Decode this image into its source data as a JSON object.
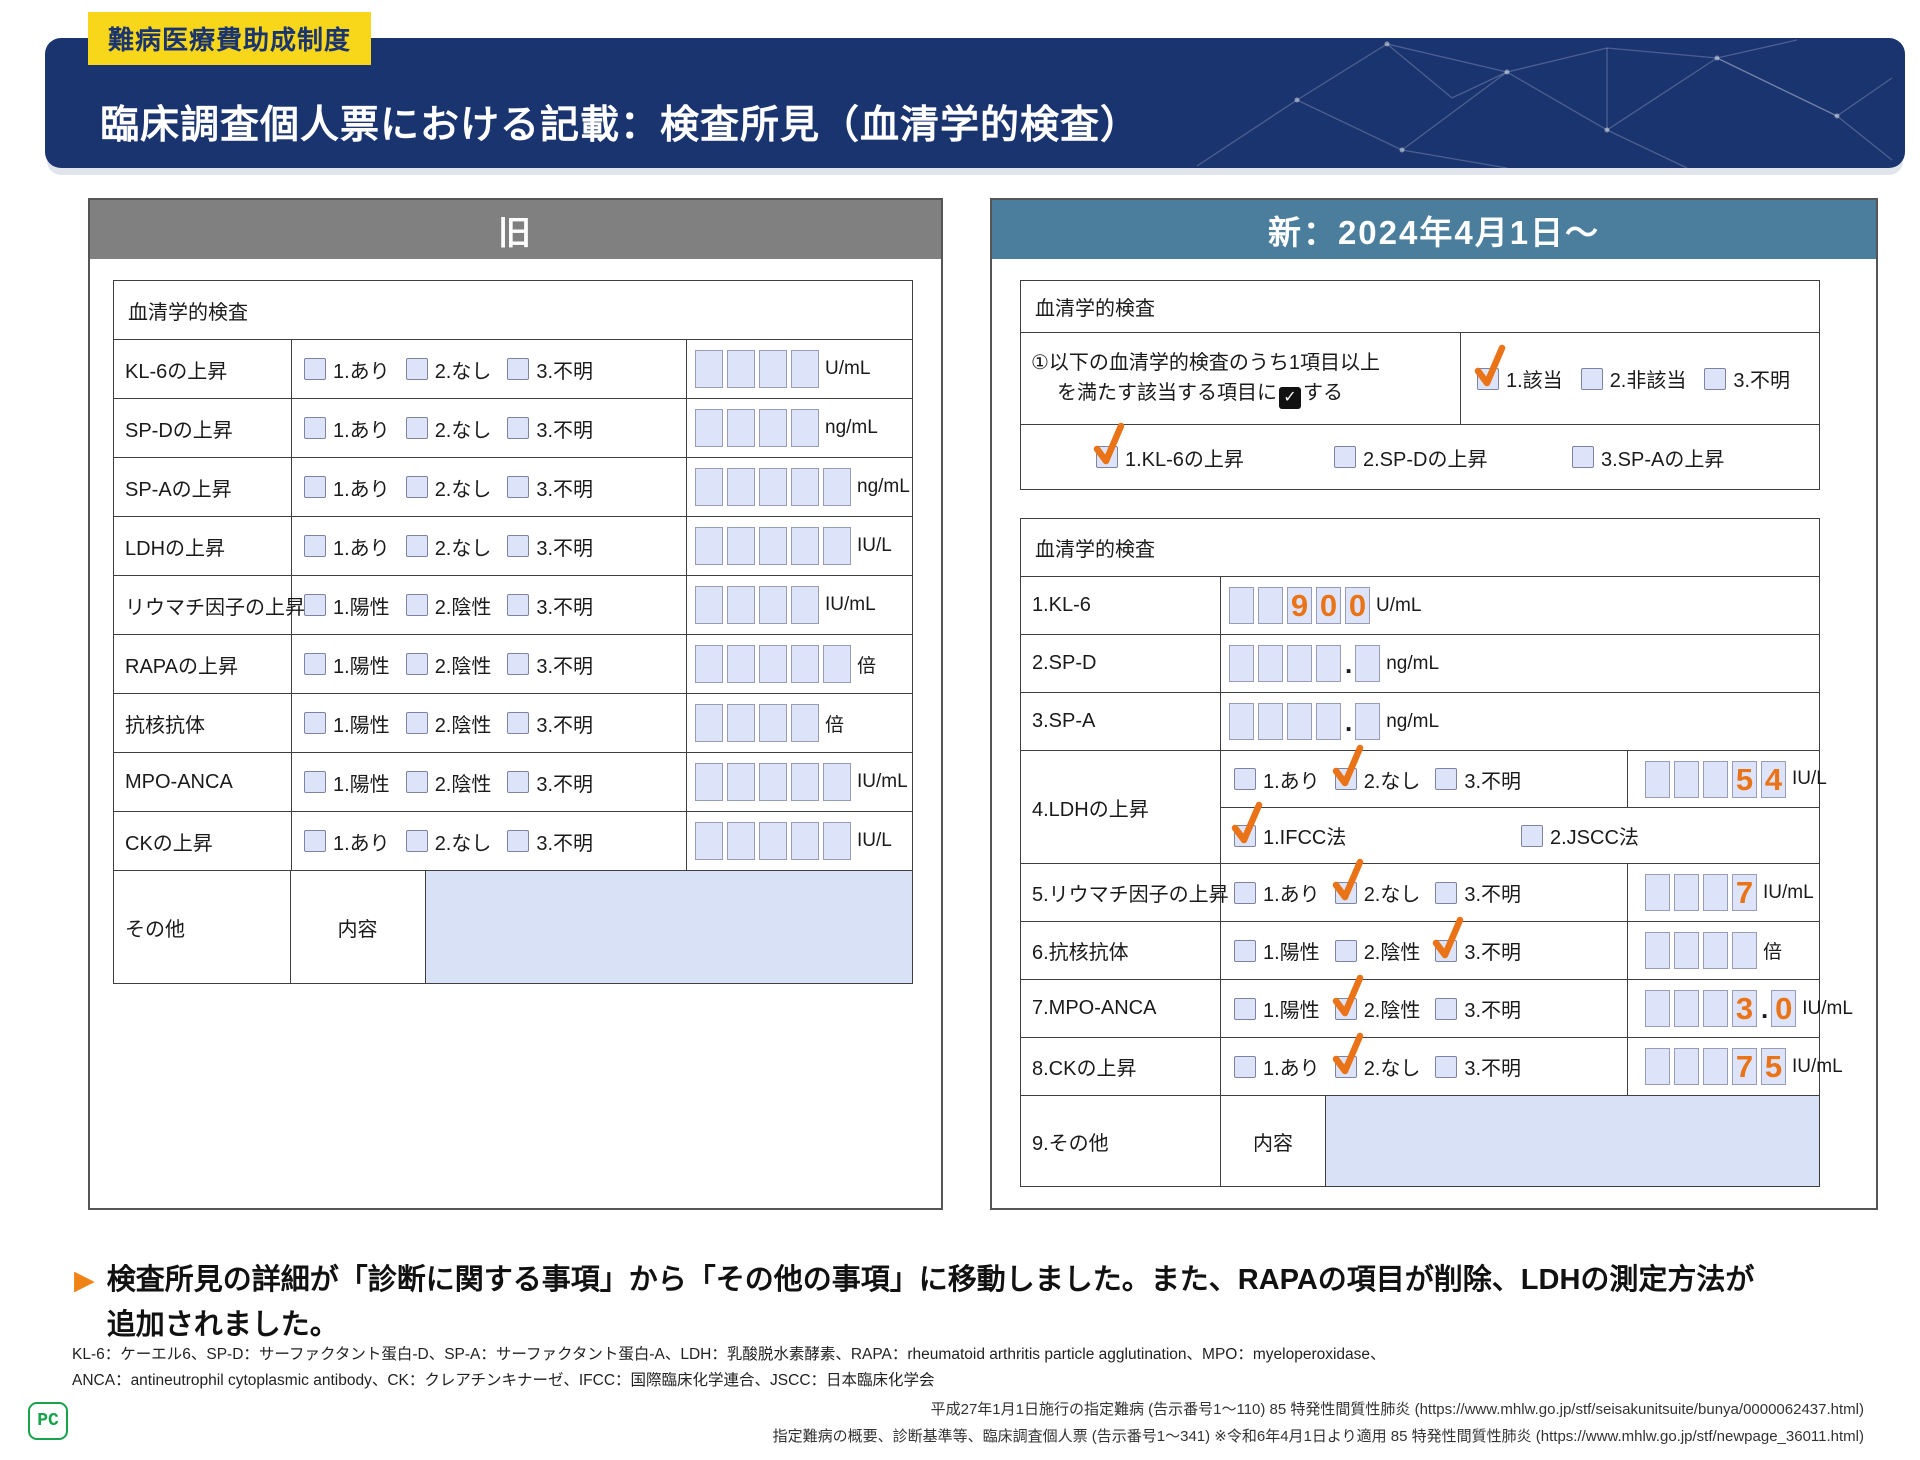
{
  "page": {
    "badge": "難病医療費助成制度",
    "title": "臨床調査個人票における記載：検査所見（血清学的検査）",
    "colors": {
      "navy": "#1a3470",
      "badge_yellow": "#f8d61a",
      "old_header_gray": "#808080",
      "new_header_teal": "#4a7e9c",
      "check_orange": "#ea7317",
      "field_fill": "#dde3f8",
      "content_area_fill": "#d9e1f7",
      "logo_green": "#18a24b"
    }
  },
  "old_panel": {
    "header": "旧",
    "table_title": "血清学的検査",
    "rows": [
      {
        "label": "KL-6の上昇",
        "options": [
          {
            "label": "1.あり"
          },
          {
            "label": "2.なし"
          },
          {
            "label": "3.不明"
          }
        ],
        "value": {
          "groups": [
            [
              "",
              "",
              "",
              ""
            ]
          ],
          "unit": "U/mL"
        }
      },
      {
        "label": "SP-Dの上昇",
        "options": [
          {
            "label": "1.あり"
          },
          {
            "label": "2.なし"
          },
          {
            "label": "3.不明"
          }
        ],
        "value": {
          "groups": [
            [
              "",
              "",
              "",
              ""
            ]
          ],
          "unit": "ng/mL"
        }
      },
      {
        "label": "SP-Aの上昇",
        "options": [
          {
            "label": "1.あり"
          },
          {
            "label": "2.なし"
          },
          {
            "label": "3.不明"
          }
        ],
        "value": {
          "groups": [
            [
              "",
              "",
              "",
              "",
              ""
            ]
          ],
          "unit": "ng/mL"
        }
      },
      {
        "label": "LDHの上昇",
        "options": [
          {
            "label": "1.あり"
          },
          {
            "label": "2.なし"
          },
          {
            "label": "3.不明"
          }
        ],
        "value": {
          "groups": [
            [
              "",
              "",
              "",
              "",
              ""
            ]
          ],
          "unit": "IU/L"
        }
      },
      {
        "label": "リウマチ因子の上昇",
        "options": [
          {
            "label": "1.陽性"
          },
          {
            "label": "2.陰性"
          },
          {
            "label": "3.不明"
          }
        ],
        "value": {
          "groups": [
            [
              "",
              "",
              "",
              ""
            ]
          ],
          "unit": "IU/mL"
        }
      },
      {
        "label": "RAPAの上昇",
        "options": [
          {
            "label": "1.陽性"
          },
          {
            "label": "2.陰性"
          },
          {
            "label": "3.不明"
          }
        ],
        "value": {
          "groups": [
            [
              "",
              "",
              "",
              "",
              ""
            ]
          ],
          "unit": "倍"
        }
      },
      {
        "label": "抗核抗体",
        "options": [
          {
            "label": "1.陽性"
          },
          {
            "label": "2.陰性"
          },
          {
            "label": "3.不明"
          }
        ],
        "value": {
          "groups": [
            [
              "",
              "",
              "",
              ""
            ]
          ],
          "unit": "倍"
        }
      },
      {
        "label": "MPO-ANCA",
        "options": [
          {
            "label": "1.陽性"
          },
          {
            "label": "2.陰性"
          },
          {
            "label": "3.不明"
          }
        ],
        "value": {
          "groups": [
            [
              "",
              "",
              "",
              "",
              ""
            ]
          ],
          "unit": "IU/mL"
        }
      },
      {
        "label": "CKの上昇",
        "options": [
          {
            "label": "1.あり"
          },
          {
            "label": "2.なし"
          },
          {
            "label": "3.不明"
          }
        ],
        "value": {
          "groups": [
            [
              "",
              "",
              "",
              "",
              ""
            ]
          ],
          "unit": "IU/L"
        }
      }
    ],
    "other_row": {
      "label": "その他",
      "content_label": "内容"
    }
  },
  "new_panel": {
    "header": "新：2024年4月1日～",
    "criteria_table": {
      "title": "血清学的検査",
      "instruction_line1": "①以下の血清学的検査のうち1項目以上",
      "instruction_line2_pre": "を満たす該当する項目に",
      "instruction_check_glyph": "✓",
      "instruction_line2_post": "する",
      "status_options": [
        {
          "label": "1.該当",
          "checked": true
        },
        {
          "label": "2.非該当",
          "checked": false
        },
        {
          "label": "3.不明",
          "checked": false
        }
      ],
      "item_options": [
        {
          "label": "1.KL-6の上昇",
          "checked": true
        },
        {
          "label": "2.SP-Dの上昇",
          "checked": false
        },
        {
          "label": "3.SP-Aの上昇",
          "checked": false
        }
      ]
    },
    "result_table": {
      "title": "血清学的検査",
      "rows": [
        {
          "type": "value_only",
          "label": "1.KL-6",
          "value": {
            "groups": [
              [
                "",
                "",
                "9",
                "0",
                "0"
              ]
            ],
            "unit": "U/mL"
          }
        },
        {
          "type": "value_only",
          "label": "2.SP-D",
          "value": {
            "groups": [
              [
                "",
                "",
                "",
                ""
              ],
              [
                ""
              ]
            ],
            "unit": "ng/mL"
          }
        },
        {
          "type": "value_only",
          "label": "3.SP-A",
          "value": {
            "groups": [
              [
                "",
                "",
                "",
                ""
              ],
              [
                ""
              ]
            ],
            "unit": "ng/mL"
          }
        },
        {
          "type": "options_value_methods",
          "label": "4.LDHの上昇",
          "options": [
            {
              "label": "1.あり",
              "checked": false
            },
            {
              "label": "2.なし",
              "checked": true
            },
            {
              "label": "3.不明",
              "checked": false
            }
          ],
          "value": {
            "groups": [
              [
                "",
                "",
                "",
                "5",
                "4"
              ]
            ],
            "unit": "IU/L"
          },
          "methods": [
            {
              "label": "1.IFCC法",
              "checked": true
            },
            {
              "label": "2.JSCC法",
              "checked": false
            }
          ]
        },
        {
          "type": "options_value",
          "label": "5.リウマチ因子の上昇",
          "options": [
            {
              "label": "1.あり",
              "checked": false
            },
            {
              "label": "2.なし",
              "checked": true
            },
            {
              "label": "3.不明",
              "checked": false
            }
          ],
          "value": {
            "groups": [
              [
                "",
                "",
                "",
                "7"
              ]
            ],
            "unit": "IU/mL"
          }
        },
        {
          "type": "options_value",
          "label": "6.抗核抗体",
          "options": [
            {
              "label": "1.陽性",
              "checked": false
            },
            {
              "label": "2.陰性",
              "checked": false
            },
            {
              "label": "3.不明",
              "checked": true
            }
          ],
          "value": {
            "groups": [
              [
                "",
                "",
                "",
                ""
              ]
            ],
            "unit": "倍"
          }
        },
        {
          "type": "options_value",
          "label": "7.MPO-ANCA",
          "options": [
            {
              "label": "1.陽性",
              "checked": false
            },
            {
              "label": "2.陰性",
              "checked": true
            },
            {
              "label": "3.不明",
              "checked": false
            }
          ],
          "value": {
            "groups": [
              [
                "",
                "",
                "",
                "3"
              ],
              [
                "0"
              ]
            ],
            "unit": "IU/mL"
          }
        },
        {
          "type": "options_value",
          "label": "8.CKの上昇",
          "options": [
            {
              "label": "1.あり",
              "checked": false
            },
            {
              "label": "2.なし",
              "checked": true
            },
            {
              "label": "3.不明",
              "checked": false
            }
          ],
          "value": {
            "groups": [
              [
                "",
                "",
                "",
                "7",
                "5"
              ]
            ],
            "unit": "IU/mL"
          }
        },
        {
          "type": "other",
          "label": "9.その他",
          "content_label": "内容"
        }
      ]
    }
  },
  "summary": {
    "bullet": "▶",
    "line1": "検査所見の詳細が「診断に関する事項」から「その他の事項」に移動しました。また、RAPAの項目が削除、LDHの測定方法が",
    "line2": "追加されました。"
  },
  "footnotes": {
    "line1": "KL-6：ケーエル6、SP-D：サーファクタント蛋白-D、SP-A：サーファクタント蛋白-A、LDH：乳酸脱水素酵素、RAPA：rheumatoid arthritis particle agglutination、MPO：myeloperoxidase、",
    "line2": "ANCA：antineutrophil cytoplasmic antibody、CK：クレアチンキナーゼ、IFCC：国際臨床化学連合、JSCC：日本臨床化学会"
  },
  "citations": {
    "line1": "平成27年1月1日施行の指定難病 (告示番号1～110) 85 特発性間質性肺炎 (https://www.mhlw.go.jp/stf/seisakunitsuite/bunya/0000062437.html)",
    "line2": "指定難病の概要、診断基準等、臨床調査個人票 (告示番号1～341) ※令和6年4月1日より適用 85 特発性間質性肺炎 (https://www.mhlw.go.jp/stf/newpage_36011.html)"
  },
  "logo": {
    "text": "PC"
  }
}
